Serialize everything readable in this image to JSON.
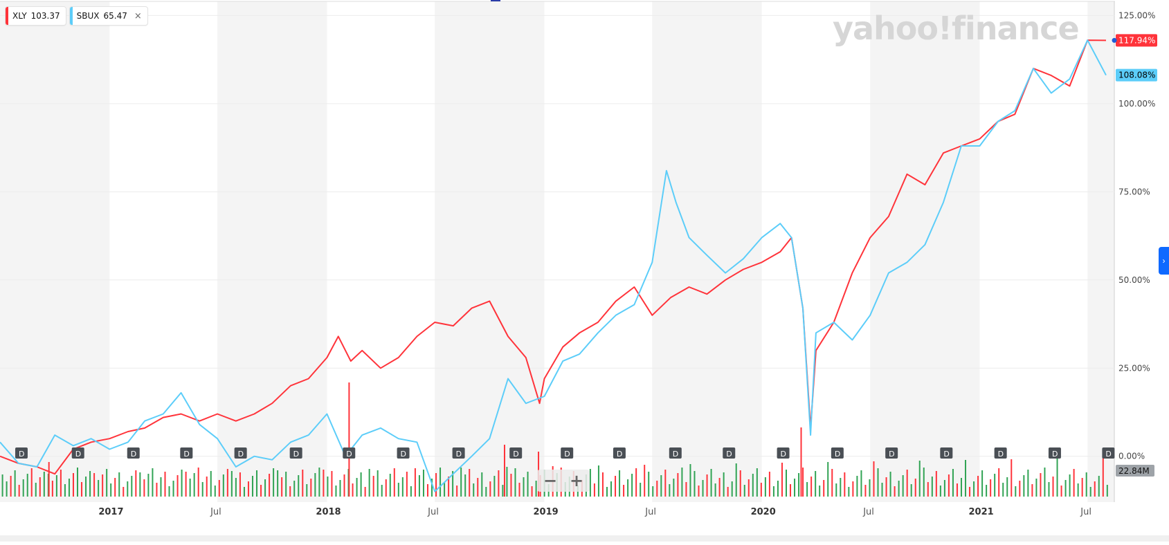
{
  "legend": [
    {
      "symbol": "XLY",
      "value": "103.37",
      "color": "#ff333a"
    },
    {
      "symbol": "SBUX",
      "value": "65.47",
      "color": "#5ccdf9",
      "close_icon": "×"
    }
  ],
  "watermark": "yahoo!finance",
  "zoom": {
    "minus": "−",
    "plus": "+"
  },
  "side_tab_icon": "›",
  "colors": {
    "xly": "#ff333a",
    "sbux": "#5ccdf9",
    "vol_up": "#31a354",
    "vol_down": "#ff333a",
    "band": "#f4f4f4"
  },
  "chart_data": {
    "type": "line",
    "y_ticks": [
      "125.00%",
      "100.00%",
      "75.00%",
      "50.00%",
      "25.00%",
      "0.00%"
    ],
    "y_tick_values": [
      125,
      100,
      75,
      50,
      25,
      0
    ],
    "ylim": [
      -13,
      129
    ],
    "x_ticks": [
      {
        "label": "2017",
        "date": "2017-01-01",
        "major": true
      },
      {
        "label": "Jul",
        "date": "2017-07-01",
        "major": false
      },
      {
        "label": "2018",
        "date": "2018-01-01",
        "major": true
      },
      {
        "label": "Jul",
        "date": "2018-07-01",
        "major": false
      },
      {
        "label": "2019",
        "date": "2019-01-01",
        "major": true
      },
      {
        "label": "Jul",
        "date": "2019-07-01",
        "major": false
      },
      {
        "label": "2020",
        "date": "2020-01-01",
        "major": true
      },
      {
        "label": "Jul",
        "date": "2020-07-01",
        "major": false
      },
      {
        "label": "2021",
        "date": "2021-01-01",
        "major": true
      },
      {
        "label": "Jul",
        "date": "2021-07-01",
        "major": false
      }
    ],
    "xlim": [
      "2016-07-01",
      "2021-08-15"
    ],
    "last_values": [
      {
        "name": "XLY",
        "label": "117.94%",
        "value": 117.94
      },
      {
        "name": "SBUX",
        "label": "108.08%",
        "value": 108.08
      }
    ],
    "volume_label": "22.84M",
    "dividend_marker": "D",
    "dividend_dates": [
      "2016-08-06",
      "2016-11-09",
      "2017-02-10",
      "2017-05-10",
      "2017-08-09",
      "2017-11-10",
      "2018-02-07",
      "2018-05-09",
      "2018-08-10",
      "2018-11-14",
      "2019-02-08",
      "2019-05-07",
      "2019-08-09",
      "2019-11-07",
      "2020-02-06",
      "2020-05-07",
      "2020-08-06",
      "2020-11-06",
      "2021-02-05",
      "2021-05-07",
      "2021-08-05"
    ],
    "series": [
      {
        "name": "XLY",
        "x": [
          "2016-07-01",
          "2016-08-01",
          "2016-09-01",
          "2016-10-01",
          "2016-11-01",
          "2016-12-01",
          "2017-01-01",
          "2017-02-01",
          "2017-03-01",
          "2017-04-01",
          "2017-05-01",
          "2017-06-01",
          "2017-07-01",
          "2017-08-01",
          "2017-09-01",
          "2017-10-01",
          "2017-11-01",
          "2017-12-01",
          "2018-01-01",
          "2018-01-20",
          "2018-02-10",
          "2018-03-01",
          "2018-04-01",
          "2018-05-01",
          "2018-06-01",
          "2018-07-01",
          "2018-08-01",
          "2018-09-01",
          "2018-10-01",
          "2018-11-01",
          "2018-12-01",
          "2018-12-24",
          "2019-01-01",
          "2019-02-01",
          "2019-03-01",
          "2019-04-01",
          "2019-05-01",
          "2019-06-01",
          "2019-07-01",
          "2019-08-01",
          "2019-09-01",
          "2019-10-01",
          "2019-11-01",
          "2019-12-01",
          "2020-01-01",
          "2020-02-01",
          "2020-02-20",
          "2020-03-10",
          "2020-03-23",
          "2020-04-01",
          "2020-05-01",
          "2020-06-01",
          "2020-07-01",
          "2020-08-01",
          "2020-09-01",
          "2020-10-01",
          "2020-11-01",
          "2020-12-01",
          "2021-01-01",
          "2021-02-01",
          "2021-03-01",
          "2021-04-01",
          "2021-05-01",
          "2021-06-01",
          "2021-07-01",
          "2021-08-01"
        ],
        "values": [
          0,
          -2,
          -3,
          -5,
          2,
          4,
          5,
          7,
          8,
          11,
          12,
          10,
          12,
          10,
          12,
          15,
          20,
          22,
          28,
          34,
          27,
          30,
          25,
          28,
          34,
          38,
          37,
          42,
          44,
          34,
          28,
          15,
          22,
          31,
          35,
          38,
          44,
          48,
          40,
          45,
          48,
          46,
          50,
          53,
          55,
          58,
          62,
          42,
          8,
          30,
          38,
          52,
          62,
          68,
          80,
          77,
          86,
          88,
          90,
          95,
          97,
          110,
          108,
          105,
          118,
          117.94
        ]
      },
      {
        "name": "SBUX",
        "x": [
          "2016-07-01",
          "2016-08-01",
          "2016-09-01",
          "2016-10-01",
          "2016-11-01",
          "2016-12-01",
          "2017-01-01",
          "2017-02-01",
          "2017-03-01",
          "2017-04-01",
          "2017-05-01",
          "2017-06-01",
          "2017-07-01",
          "2017-08-01",
          "2017-09-01",
          "2017-10-01",
          "2017-11-01",
          "2017-12-01",
          "2018-01-01",
          "2018-02-01",
          "2018-03-01",
          "2018-04-01",
          "2018-05-01",
          "2018-06-01",
          "2018-07-01",
          "2018-08-01",
          "2018-09-01",
          "2018-10-01",
          "2018-11-01",
          "2018-12-01",
          "2019-01-01",
          "2019-02-01",
          "2019-03-01",
          "2019-04-01",
          "2019-05-01",
          "2019-06-01",
          "2019-07-01",
          "2019-07-25",
          "2019-08-10",
          "2019-09-01",
          "2019-10-01",
          "2019-11-01",
          "2019-12-01",
          "2020-01-01",
          "2020-02-01",
          "2020-02-20",
          "2020-03-10",
          "2020-03-23",
          "2020-04-01",
          "2020-05-01",
          "2020-06-01",
          "2020-07-01",
          "2020-08-01",
          "2020-09-01",
          "2020-10-01",
          "2020-11-01",
          "2020-12-01",
          "2021-01-01",
          "2021-02-01",
          "2021-03-01",
          "2021-04-01",
          "2021-05-01",
          "2021-06-01",
          "2021-07-01",
          "2021-08-01"
        ],
        "values": [
          4,
          -2,
          -3,
          6,
          3,
          5,
          2,
          4,
          10,
          12,
          18,
          9,
          5,
          -3,
          0,
          -1,
          4,
          6,
          12,
          0,
          6,
          8,
          5,
          4,
          -10,
          -5,
          0,
          5,
          22,
          15,
          17,
          27,
          29,
          35,
          40,
          43,
          55,
          81,
          72,
          62,
          57,
          52,
          56,
          62,
          66,
          62,
          42,
          6,
          35,
          38,
          33,
          40,
          52,
          55,
          60,
          72,
          88,
          88,
          95,
          98,
          110,
          103,
          107,
          118,
          108.08
        ]
      }
    ]
  }
}
